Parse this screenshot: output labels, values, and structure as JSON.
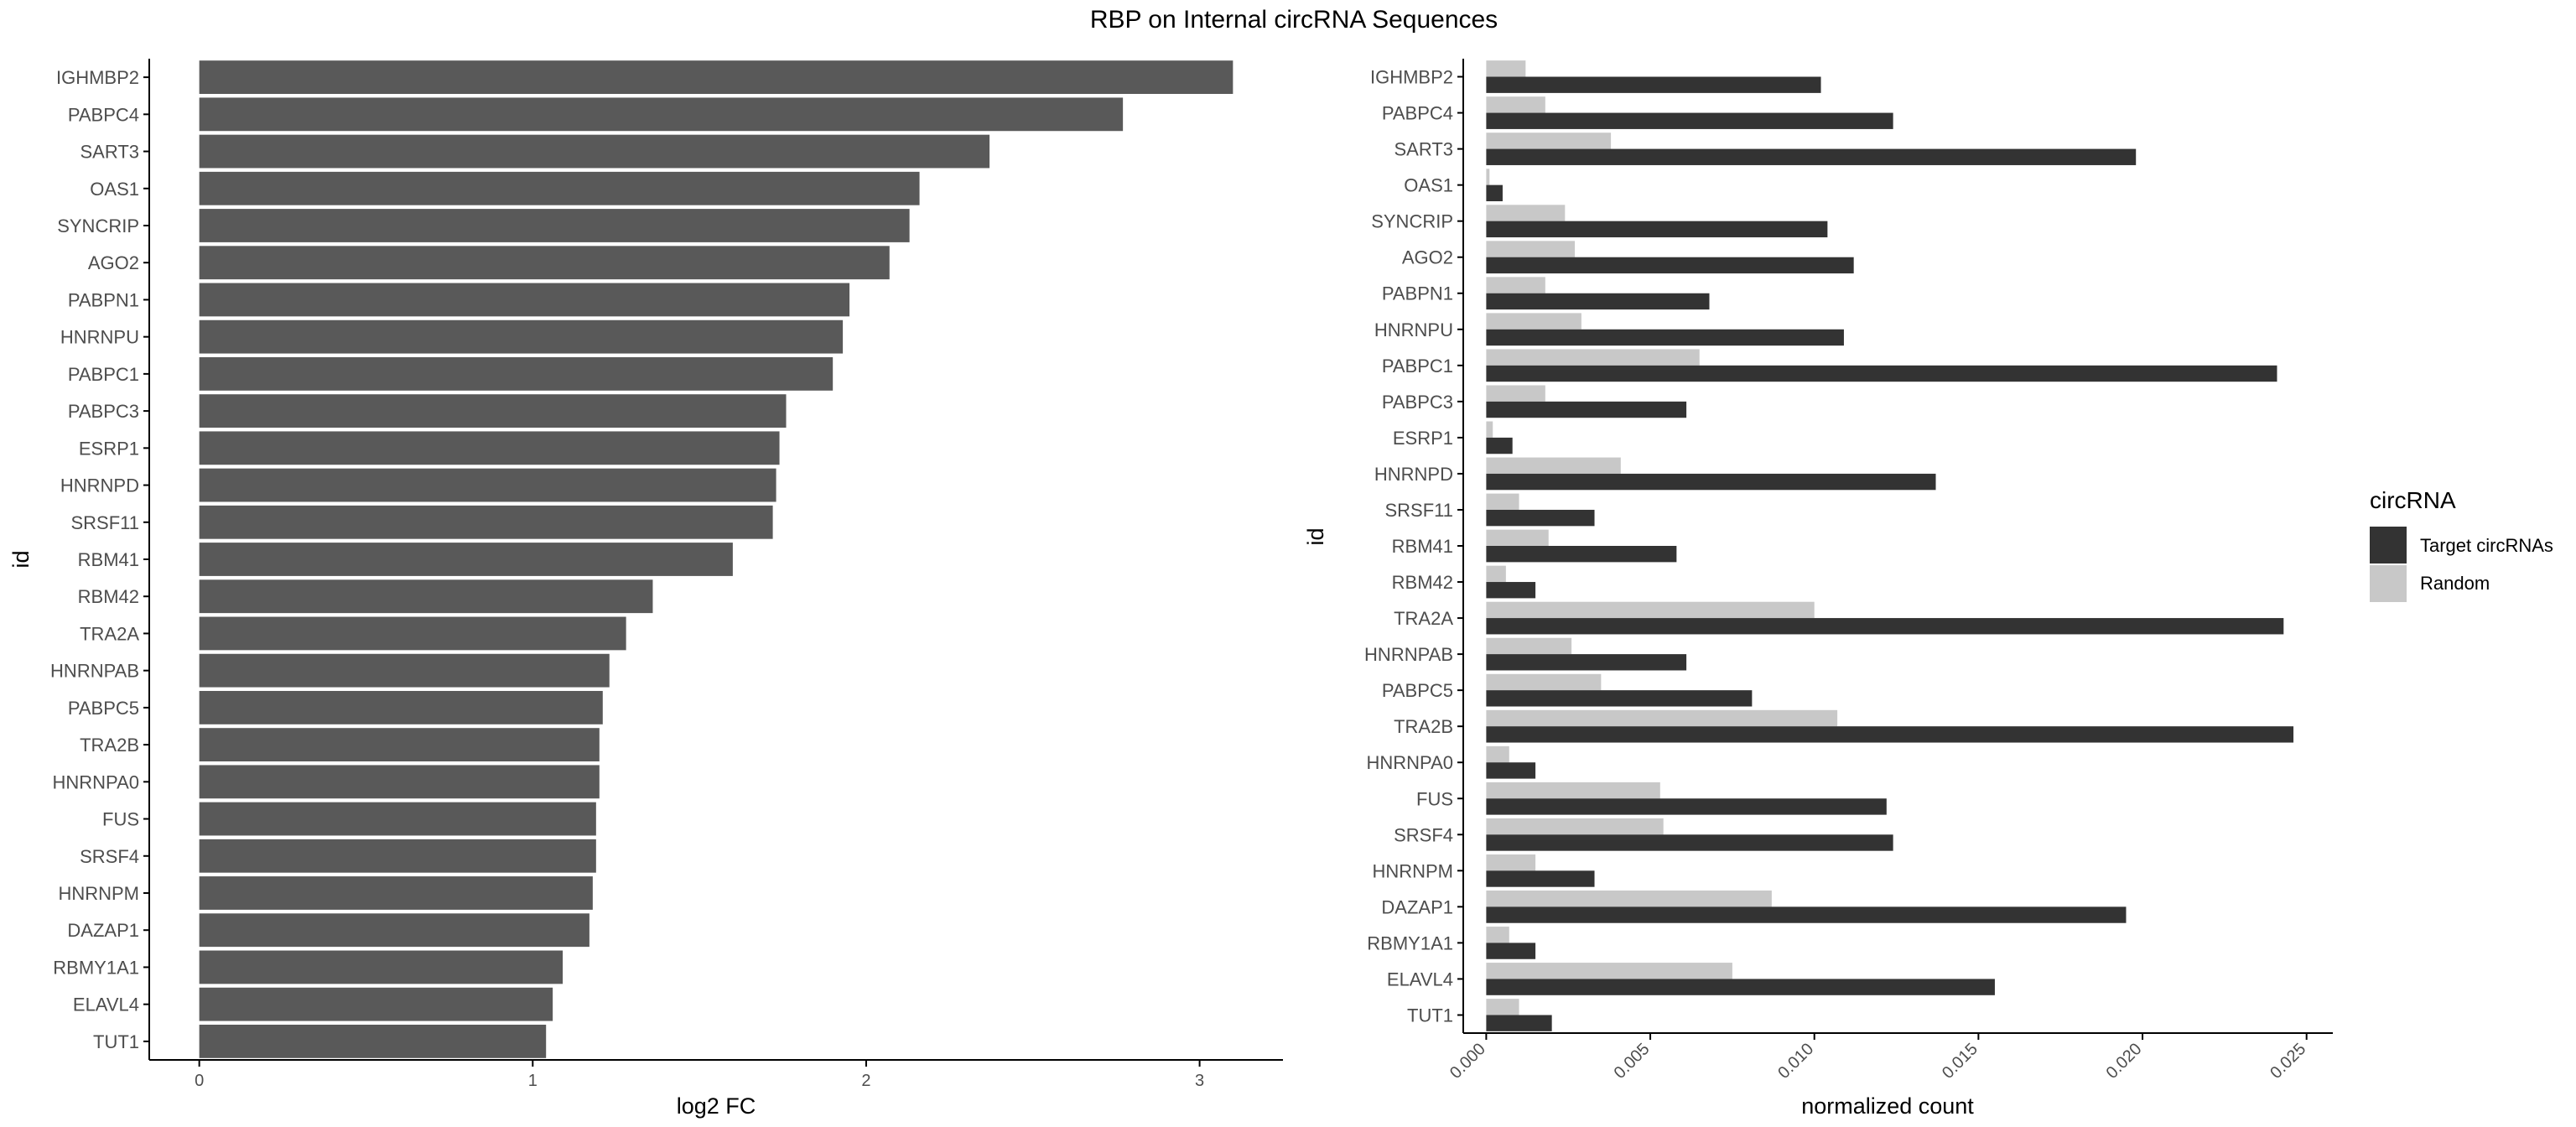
{
  "title": "RBP on Internal circRNA Sequences",
  "colors": {
    "bar": "#595959",
    "target": "#333333",
    "random": "#c8c8c8",
    "axis": "#000000"
  },
  "chart_data": [
    {
      "type": "bar",
      "orientation": "horizontal",
      "xlabel": "log2 FC",
      "ylabel": "id",
      "xlim": [
        -0.15,
        3.25
      ],
      "xticks": [
        0,
        1,
        2,
        3
      ],
      "xtick_labels": [
        "0",
        "1",
        "2",
        "3"
      ],
      "grid": false,
      "categories": [
        "IGHMBP2",
        "PABPC4",
        "SART3",
        "OAS1",
        "SYNCRIP",
        "AGO2",
        "PABPN1",
        "HNRNPU",
        "PABPC1",
        "PABPC3",
        "ESRP1",
        "HNRNPD",
        "SRSF11",
        "RBM41",
        "RBM42",
        "TRA2A",
        "HNRNPAB",
        "PABPC5",
        "TRA2B",
        "HNRNPA0",
        "FUS",
        "SRSF4",
        "HNRNPM",
        "DAZAP1",
        "RBMY1A1",
        "ELAVL4",
        "TUT1"
      ],
      "values": [
        3.1,
        2.77,
        2.37,
        2.16,
        2.13,
        2.07,
        1.95,
        1.93,
        1.9,
        1.76,
        1.74,
        1.73,
        1.72,
        1.6,
        1.36,
        1.28,
        1.23,
        1.21,
        1.2,
        1.2,
        1.19,
        1.19,
        1.18,
        1.17,
        1.09,
        1.06,
        1.04
      ]
    },
    {
      "type": "bar",
      "orientation": "horizontal",
      "grouped": true,
      "xlabel": "normalized count",
      "ylabel": "id",
      "xlim": [
        -0.0007,
        0.0258
      ],
      "xticks": [
        0,
        0.005,
        0.01,
        0.015,
        0.02,
        0.025
      ],
      "xtick_labels": [
        "0.000",
        "0.005",
        "0.010",
        "0.015",
        "0.020",
        "0.025"
      ],
      "grid": false,
      "legend": {
        "title": "circRNA",
        "position": "right"
      },
      "categories": [
        "IGHMBP2",
        "PABPC4",
        "SART3",
        "OAS1",
        "SYNCRIP",
        "AGO2",
        "PABPN1",
        "HNRNPU",
        "PABPC1",
        "PABPC3",
        "ESRP1",
        "HNRNPD",
        "SRSF11",
        "RBM41",
        "RBM42",
        "TRA2A",
        "HNRNPAB",
        "PABPC5",
        "TRA2B",
        "HNRNPA0",
        "FUS",
        "SRSF4",
        "HNRNPM",
        "DAZAP1",
        "RBMY1A1",
        "ELAVL4",
        "TUT1"
      ],
      "series": [
        {
          "name": "Target circRNAs",
          "values": [
            0.0102,
            0.0124,
            0.0198,
            0.0005,
            0.0104,
            0.0112,
            0.0068,
            0.0109,
            0.0241,
            0.0061,
            0.0008,
            0.0137,
            0.0033,
            0.0058,
            0.0015,
            0.0243,
            0.0061,
            0.0081,
            0.0246,
            0.0015,
            0.0122,
            0.0124,
            0.0033,
            0.0195,
            0.0015,
            0.0155,
            0.002
          ]
        },
        {
          "name": "Random",
          "values": [
            0.0012,
            0.0018,
            0.0038,
            0.0001,
            0.0024,
            0.0027,
            0.0018,
            0.0029,
            0.0065,
            0.0018,
            0.0002,
            0.0041,
            0.001,
            0.0019,
            0.0006,
            0.01,
            0.0026,
            0.0035,
            0.0107,
            0.0007,
            0.0053,
            0.0054,
            0.0015,
            0.0087,
            0.0007,
            0.0075,
            0.001
          ]
        }
      ]
    }
  ]
}
